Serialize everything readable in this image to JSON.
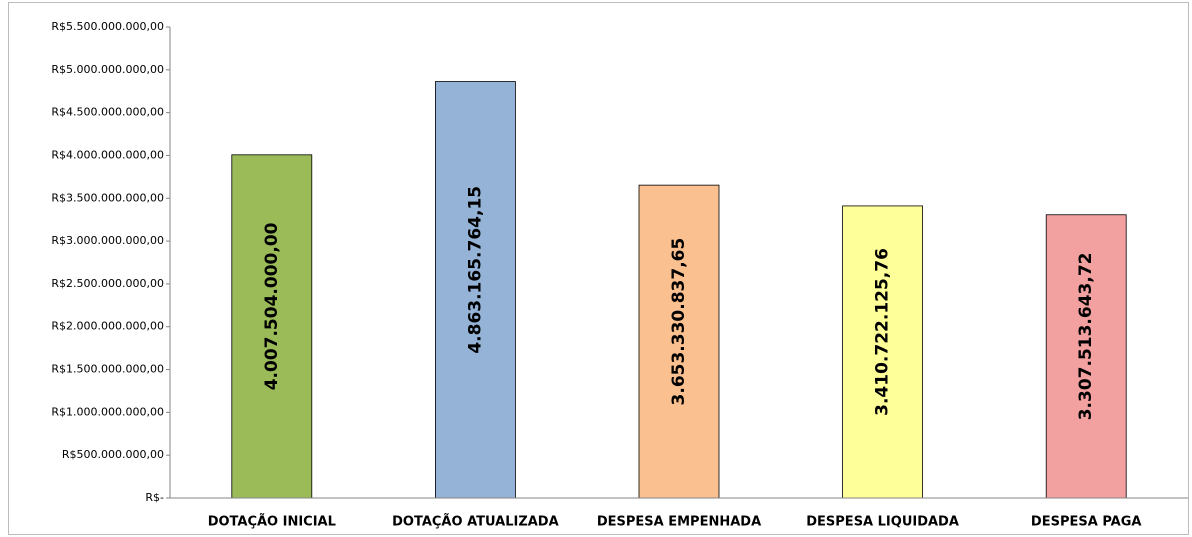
{
  "chart_data": {
    "type": "bar",
    "categories": [
      "DOTAÇÃO INICIAL",
      "DOTAÇÃO ATUALIZADA",
      "DESPESA EMPENHADA",
      "DESPESA LIQUIDADA",
      "DESPESA PAGA"
    ],
    "values": [
      4007504000.0,
      4863165764.15,
      3653330837.65,
      3410722125.76,
      3307513643.72
    ],
    "value_labels": [
      "4.007.504.000,00",
      "4.863.165.764,15",
      "3.653.330.837,65",
      "3.410.722.125,76",
      "3.307.513.643,72"
    ],
    "colors": [
      "#9bbb59",
      "#95b3d7",
      "#fac090",
      "#ffff99",
      "#f2a0a0"
    ],
    "ylim": [
      0,
      5500000000
    ],
    "yticks": [
      {
        "value": 0,
        "label": "R$-"
      },
      {
        "value": 500000000,
        "label": "R$500.000.000,00"
      },
      {
        "value": 1000000000,
        "label": "R$1.000.000.000,00"
      },
      {
        "value": 1500000000,
        "label": "R$1.500.000.000,00"
      },
      {
        "value": 2000000000,
        "label": "R$2.000.000.000,00"
      },
      {
        "value": 2500000000,
        "label": "R$2.500.000.000,00"
      },
      {
        "value": 3000000000,
        "label": "R$3.000.000.000,00"
      },
      {
        "value": 3500000000,
        "label": "R$3.500.000.000,00"
      },
      {
        "value": 4000000000,
        "label": "R$4.000.000.000,00"
      },
      {
        "value": 4500000000,
        "label": "R$4.500.000.000,00"
      },
      {
        "value": 5000000000,
        "label": "R$5.000.000.000,00"
      },
      {
        "value": 5500000000,
        "label": "R$5.500.000.000,00"
      }
    ],
    "grid": false
  }
}
